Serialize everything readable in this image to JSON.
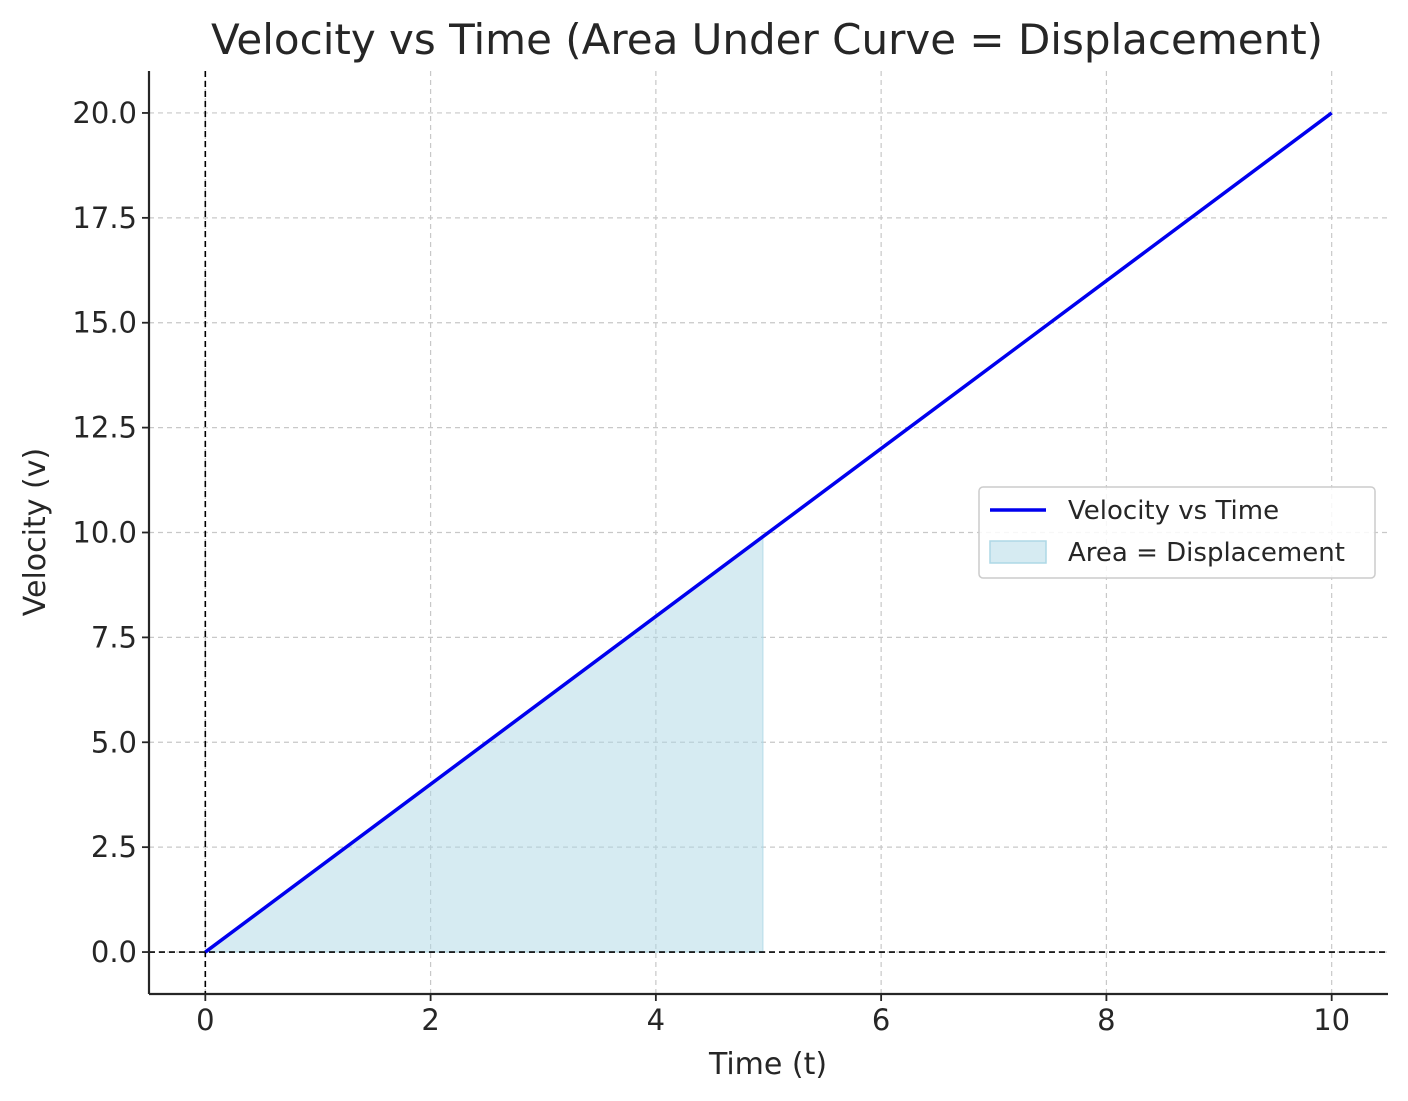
{
  "chart_data": {
    "type": "line",
    "title": "Velocity vs Time (Area Under Curve = Displacement)",
    "xlabel": "Time (t)",
    "ylabel": "Velocity (v)",
    "xlim": [
      -0.5,
      10.5
    ],
    "ylim": [
      -1,
      21
    ],
    "x_ticks": [
      0,
      2,
      4,
      6,
      8,
      10
    ],
    "x_tick_labels": [
      "0",
      "2",
      "4",
      "6",
      "8",
      "10"
    ],
    "y_ticks": [
      0,
      2.5,
      5,
      7.5,
      10,
      12.5,
      15,
      17.5,
      20
    ],
    "y_tick_labels": [
      "0.0",
      "2.5",
      "5.0",
      "7.5",
      "10.0",
      "12.5",
      "15.0",
      "17.5",
      "20.0"
    ],
    "grid": true,
    "reference_lines": [
      {
        "axis": "x",
        "value": 0,
        "style": "dashed",
        "color": "#000000"
      },
      {
        "axis": "y",
        "value": 0,
        "style": "dashed",
        "color": "#000000"
      }
    ],
    "series": [
      {
        "name": "Velocity vs Time",
        "type": "line",
        "color": "#0000ee",
        "x": [
          0,
          10
        ],
        "y": [
          0,
          20
        ]
      }
    ],
    "filled_area": {
      "name": "Area = Displacement",
      "color": "#add8e6",
      "x": [
        0,
        4.95
      ],
      "y": [
        0,
        9.9
      ]
    },
    "legend": {
      "position": "center-right",
      "entries": [
        "Velocity vs Time",
        "Area = Displacement"
      ]
    }
  }
}
